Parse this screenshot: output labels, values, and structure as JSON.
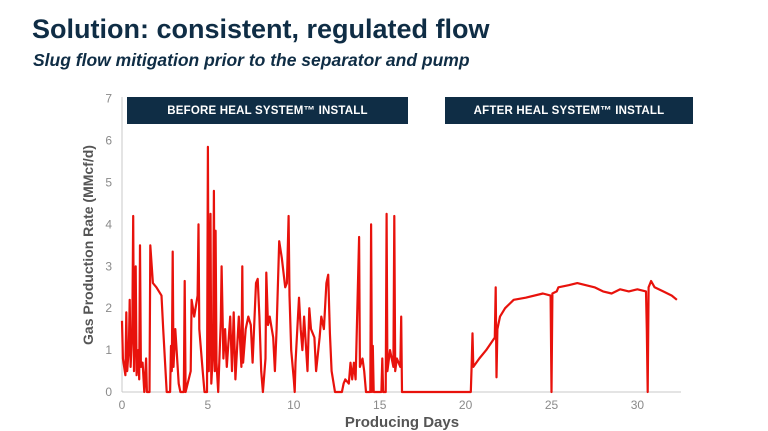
{
  "slide": {
    "title": "Solution: consistent, regulated flow",
    "subtitle": "Slug flow mitigation prior to the separator and pump"
  },
  "chart_data": {
    "type": "line",
    "xlabel": "Producing Days",
    "ylabel": "Gas Production Rate (MMcf/d)",
    "xlim": [
      0,
      32.4
    ],
    "ylim": [
      0,
      7
    ],
    "xticks": [
      0,
      5,
      10,
      15,
      20,
      25,
      30
    ],
    "yticks": [
      0,
      1,
      2,
      3,
      4,
      5,
      6,
      7
    ],
    "grid": false,
    "line_color": "#e8120c",
    "annotations": [
      {
        "text": "BEFORE HEAL SYSTEM™ INSTALL",
        "x_range": [
          0,
          16.3
        ]
      },
      {
        "text": "AFTER HEAL SYSTEM™ INSTALL",
        "x_range": [
          20.3,
          32.4
        ]
      }
    ],
    "series": [
      {
        "points": [
          [
            0,
            1.7
          ],
          [
            0.05,
            0.8
          ],
          [
            0.2,
            0.4
          ],
          [
            0.25,
            1.9
          ],
          [
            0.3,
            0.5
          ],
          [
            0.4,
            1.1
          ],
          [
            0.45,
            2.2
          ],
          [
            0.5,
            0.6
          ],
          [
            0.6,
            1.5
          ],
          [
            0.65,
            4.2
          ],
          [
            0.7,
            0.5
          ],
          [
            0.8,
            3.0
          ],
          [
            0.85,
            0.4
          ],
          [
            0.95,
            1.0
          ],
          [
            1.0,
            0.3
          ],
          [
            1.05,
            3.5
          ],
          [
            1.1,
            0.6
          ],
          [
            1.2,
            0.7
          ],
          [
            1.3,
            0
          ],
          [
            1.4,
            0.8
          ],
          [
            1.45,
            0
          ],
          [
            1.6,
            0
          ],
          [
            1.65,
            3.5
          ],
          [
            1.8,
            2.6
          ],
          [
            2.0,
            2.5
          ],
          [
            2.3,
            2.3
          ],
          [
            2.4,
            1.5
          ],
          [
            2.6,
            0
          ],
          [
            2.8,
            0
          ],
          [
            2.85,
            1.1
          ],
          [
            2.9,
            0.5
          ],
          [
            2.95,
            3.35
          ],
          [
            3.0,
            0.6
          ],
          [
            3.1,
            1.5
          ],
          [
            3.3,
            0.2
          ],
          [
            3.4,
            0
          ],
          [
            3.6,
            0
          ],
          [
            3.65,
            2.65
          ],
          [
            3.7,
            0
          ],
          [
            4.0,
            0.5
          ],
          [
            4.05,
            2.2
          ],
          [
            4.2,
            1.8
          ],
          [
            4.4,
            2.3
          ],
          [
            4.45,
            4.0
          ],
          [
            4.5,
            1.5
          ],
          [
            4.7,
            0.5
          ],
          [
            4.8,
            0
          ],
          [
            4.95,
            0
          ],
          [
            5.0,
            5.85
          ],
          [
            5.05,
            0.5
          ],
          [
            5.15,
            4.25
          ],
          [
            5.2,
            0.2
          ],
          [
            5.3,
            1.0
          ],
          [
            5.35,
            4.8
          ],
          [
            5.4,
            0.5
          ],
          [
            5.45,
            3.85
          ],
          [
            5.5,
            0.7
          ],
          [
            5.6,
            0
          ],
          [
            5.75,
            1.7
          ],
          [
            5.8,
            3.0
          ],
          [
            5.9,
            0.8
          ],
          [
            6.0,
            1.5
          ],
          [
            6.1,
            0.6
          ],
          [
            6.3,
            1.8
          ],
          [
            6.4,
            0.5
          ],
          [
            6.5,
            1.9
          ],
          [
            6.6,
            0.3
          ],
          [
            6.8,
            1.8
          ],
          [
            6.95,
            0.6
          ],
          [
            7.0,
            3.0
          ],
          [
            7.05,
            0.7
          ],
          [
            7.2,
            1.5
          ],
          [
            7.35,
            1.8
          ],
          [
            7.5,
            1.6
          ],
          [
            7.6,
            0.7
          ],
          [
            7.8,
            2.6
          ],
          [
            7.9,
            2.7
          ],
          [
            8.0,
            1.8
          ],
          [
            8.1,
            0.5
          ],
          [
            8.2,
            0
          ],
          [
            8.35,
            0.8
          ],
          [
            8.4,
            2.85
          ],
          [
            8.5,
            1.6
          ],
          [
            8.6,
            1.8
          ],
          [
            8.8,
            1.3
          ],
          [
            8.9,
            0.5
          ],
          [
            9.0,
            1.5
          ],
          [
            9.15,
            3.6
          ],
          [
            9.3,
            3.2
          ],
          [
            9.5,
            2.5
          ],
          [
            9.6,
            2.6
          ],
          [
            9.7,
            4.2
          ],
          [
            9.75,
            2.3
          ],
          [
            9.85,
            1.0
          ],
          [
            10.0,
            0.3
          ],
          [
            10.05,
            0
          ],
          [
            10.1,
            0.7
          ],
          [
            10.3,
            2.25
          ],
          [
            10.4,
            1.5
          ],
          [
            10.5,
            1.0
          ],
          [
            10.6,
            1.8
          ],
          [
            10.8,
            0.5
          ],
          [
            10.9,
            2.0
          ],
          [
            11.0,
            1.5
          ],
          [
            11.2,
            1.3
          ],
          [
            11.3,
            0.5
          ],
          [
            11.5,
            1.3
          ],
          [
            11.6,
            1.8
          ],
          [
            11.75,
            1.5
          ],
          [
            11.9,
            2.6
          ],
          [
            12.0,
            2.8
          ],
          [
            12.1,
            1.4
          ],
          [
            12.2,
            0.5
          ],
          [
            12.4,
            0
          ],
          [
            12.8,
            0
          ],
          [
            12.9,
            0.2
          ],
          [
            13.0,
            0.3
          ],
          [
            13.2,
            0.2
          ],
          [
            13.3,
            0.7
          ],
          [
            13.4,
            0.3
          ],
          [
            13.5,
            0.7
          ],
          [
            13.6,
            0.3
          ],
          [
            13.8,
            3.7
          ],
          [
            13.85,
            0.6
          ],
          [
            14.0,
            0.8
          ],
          [
            14.1,
            0.5
          ],
          [
            14.2,
            0
          ],
          [
            14.45,
            0
          ],
          [
            14.5,
            4.0
          ],
          [
            14.55,
            0
          ],
          [
            14.6,
            1.1
          ],
          [
            14.65,
            0
          ],
          [
            15.1,
            0
          ],
          [
            15.15,
            0.8
          ],
          [
            15.2,
            0
          ],
          [
            15.35,
            0
          ],
          [
            15.4,
            4.25
          ],
          [
            15.45,
            0.5
          ],
          [
            15.6,
            1.0
          ],
          [
            15.8,
            0.6
          ],
          [
            15.85,
            4.2
          ],
          [
            15.9,
            0.5
          ],
          [
            16.0,
            0.8
          ],
          [
            16.2,
            0.6
          ],
          [
            16.25,
            1.8
          ],
          [
            16.3,
            0
          ],
          [
            20.3,
            0
          ],
          [
            20.35,
            0.6
          ],
          [
            20.4,
            1.4
          ],
          [
            20.45,
            0.6
          ],
          [
            20.8,
            0.8
          ],
          [
            21.2,
            1.0
          ],
          [
            21.7,
            1.3
          ],
          [
            21.75,
            2.5
          ],
          [
            21.8,
            0.35
          ],
          [
            21.85,
            1.5
          ],
          [
            22.0,
            1.8
          ],
          [
            22.3,
            2.0
          ],
          [
            22.8,
            2.2
          ],
          [
            23.5,
            2.25
          ],
          [
            24.5,
            2.35
          ],
          [
            24.95,
            2.3
          ],
          [
            25.0,
            0
          ],
          [
            25.05,
            2.35
          ],
          [
            25.3,
            2.4
          ],
          [
            25.4,
            2.5
          ],
          [
            26,
            2.55
          ],
          [
            26.5,
            2.6
          ],
          [
            27,
            2.55
          ],
          [
            27.5,
            2.5
          ],
          [
            28,
            2.4
          ],
          [
            28.5,
            2.35
          ],
          [
            29,
            2.45
          ],
          [
            29.5,
            2.4
          ],
          [
            30,
            2.45
          ],
          [
            30.5,
            2.4
          ],
          [
            30.55,
            1.5
          ],
          [
            30.6,
            0
          ],
          [
            30.65,
            2.5
          ],
          [
            30.8,
            2.65
          ],
          [
            31,
            2.5
          ],
          [
            31.5,
            2.4
          ],
          [
            32,
            2.3
          ],
          [
            32.3,
            2.2
          ]
        ]
      }
    ]
  }
}
